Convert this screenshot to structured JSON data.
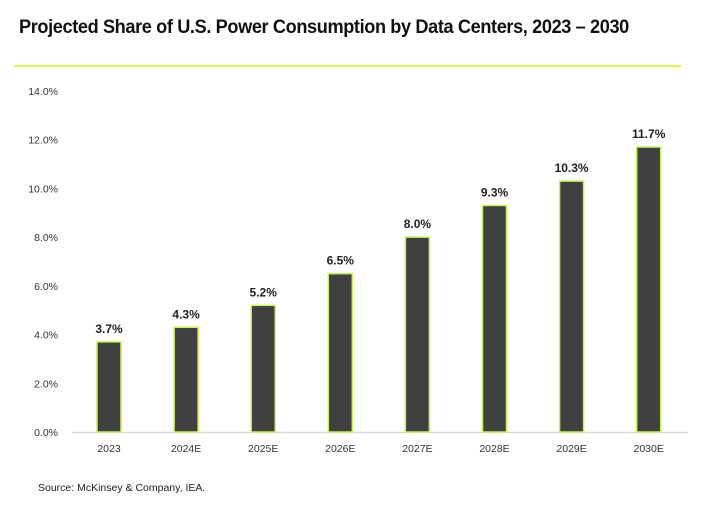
{
  "chart_data": {
    "type": "bar",
    "title": "Projected Share of U.S. Power Consumption by Data Centers, 2023 – 2030",
    "xlabel": "",
    "ylabel": "",
    "categories": [
      "2023",
      "2024E",
      "2025E",
      "2026E",
      "2027E",
      "2028E",
      "2029E",
      "2030E"
    ],
    "values": [
      3.7,
      4.3,
      5.2,
      6.5,
      8.0,
      9.3,
      10.3,
      11.7
    ],
    "data_labels": [
      "3.7%",
      "4.3%",
      "5.2%",
      "6.5%",
      "8.0%",
      "9.3%",
      "10.3%",
      "11.7%"
    ],
    "ylim": [
      0,
      14
    ],
    "yticks": [
      0,
      2,
      4,
      6,
      8,
      10,
      12,
      14
    ],
    "ytick_labels": [
      "0.0%",
      "2.0%",
      "4.0%",
      "6.0%",
      "8.0%",
      "10.0%",
      "12.0%",
      "14.0%"
    ],
    "grid": false,
    "legend": "none",
    "colors": {
      "bar_fill": "#404040",
      "bar_outline": "#c6f25a",
      "accent_rule": "#d4f75a",
      "axis": "#d9d9d9"
    }
  },
  "source": "Source: McKinsey & Company, IEA."
}
